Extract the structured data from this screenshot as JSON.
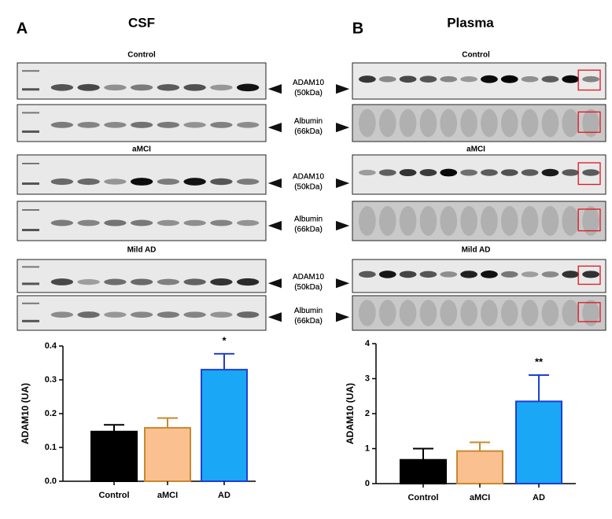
{
  "blots": {
    "groups": [
      {
        "title": "Control",
        "rows": [
          {
            "label": "ADAM10",
            "size": "(50kDa)"
          },
          {
            "label": "Albumin",
            "size": "(66kDa)"
          }
        ]
      },
      {
        "title": "aMCI",
        "rows": [
          {
            "label": "ADAM10",
            "size": "(50kDa)"
          },
          {
            "label": "Albumin",
            "size": "(66kDa)"
          }
        ]
      },
      {
        "title": "Mild AD",
        "rows": [
          {
            "label": "ADAM10",
            "size": "(50kDa)"
          },
          {
            "label": "Albumin",
            "size": "(66kDa)"
          }
        ]
      }
    ]
  },
  "chart_data": [
    {
      "type": "bar",
      "panel": "A",
      "title": "CSF",
      "ylabel": "ADAM10 (UA)",
      "categories": [
        "Control",
        "aMCI",
        "AD"
      ],
      "values": [
        0.147,
        0.158,
        0.33
      ],
      "errors": [
        0.02,
        0.029,
        0.047
      ],
      "colors": [
        "#000000",
        "#fbc08f",
        "#1aa7f5"
      ],
      "edge_colors": [
        "#000000",
        "#c8892f",
        "#1f3fd0"
      ],
      "annotations": [
        {
          "x": "AD",
          "text": "*"
        }
      ],
      "ylim": [
        0,
        0.4
      ],
      "yticks": [
        {
          "value": 0,
          "label": "0.0"
        },
        0.1,
        0.2,
        0.3,
        0.4
      ]
    },
    {
      "type": "bar",
      "panel": "B",
      "title": "Plasma",
      "ylabel": "ADAM10 (UA)",
      "categories": [
        "Control",
        "aMCI",
        "AD"
      ],
      "values": [
        0.68,
        0.93,
        2.35
      ],
      "errors": [
        0.32,
        0.25,
        0.75
      ],
      "colors": [
        "#000000",
        "#fbc08f",
        "#1aa7f5"
      ],
      "edge_colors": [
        "#000000",
        "#c8892f",
        "#1f3fd0"
      ],
      "annotations": [
        {
          "x": "AD",
          "text": "**"
        }
      ],
      "ylim": [
        0,
        4
      ],
      "yticks": [
        0,
        1,
        2,
        3,
        4
      ]
    }
  ]
}
